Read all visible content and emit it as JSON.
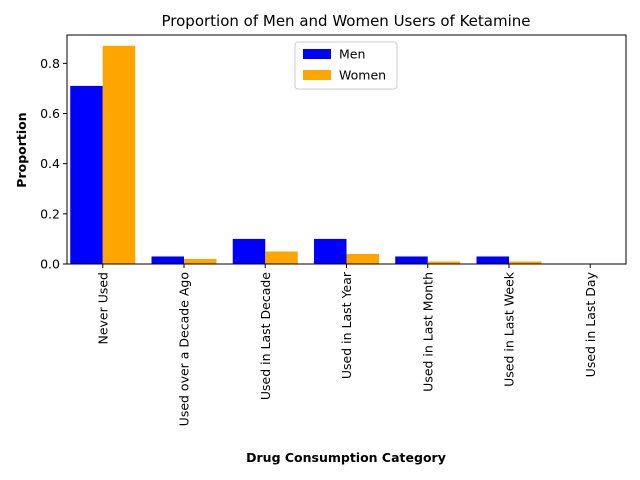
{
  "chart_data": {
    "type": "bar",
    "title": "Proportion of Men and Women Users of Ketamine",
    "xlabel": "Drug Consumption Category",
    "ylabel": "Proportion",
    "categories": [
      "Never Used",
      "Used over a Decade Ago",
      "Used in Last Decade",
      "Used in Last Year",
      "Used in Last Month",
      "Used in Last Week",
      "Used in Last Day"
    ],
    "series": [
      {
        "name": "Men",
        "color": "#0000ff",
        "values": [
          0.71,
          0.03,
          0.1,
          0.1,
          0.03,
          0.03,
          0.0
        ]
      },
      {
        "name": "Women",
        "color": "#ffa500",
        "values": [
          0.87,
          0.02,
          0.05,
          0.04,
          0.01,
          0.01,
          0.0
        ]
      }
    ],
    "ylim": [
      0,
      0.913
    ],
    "yticks": [
      0.0,
      0.2,
      0.4,
      0.6,
      0.8
    ],
    "yticklabels": [
      "0.0",
      "0.2",
      "0.4",
      "0.6",
      "0.8"
    ],
    "legend": "top-center",
    "grid": false
  }
}
